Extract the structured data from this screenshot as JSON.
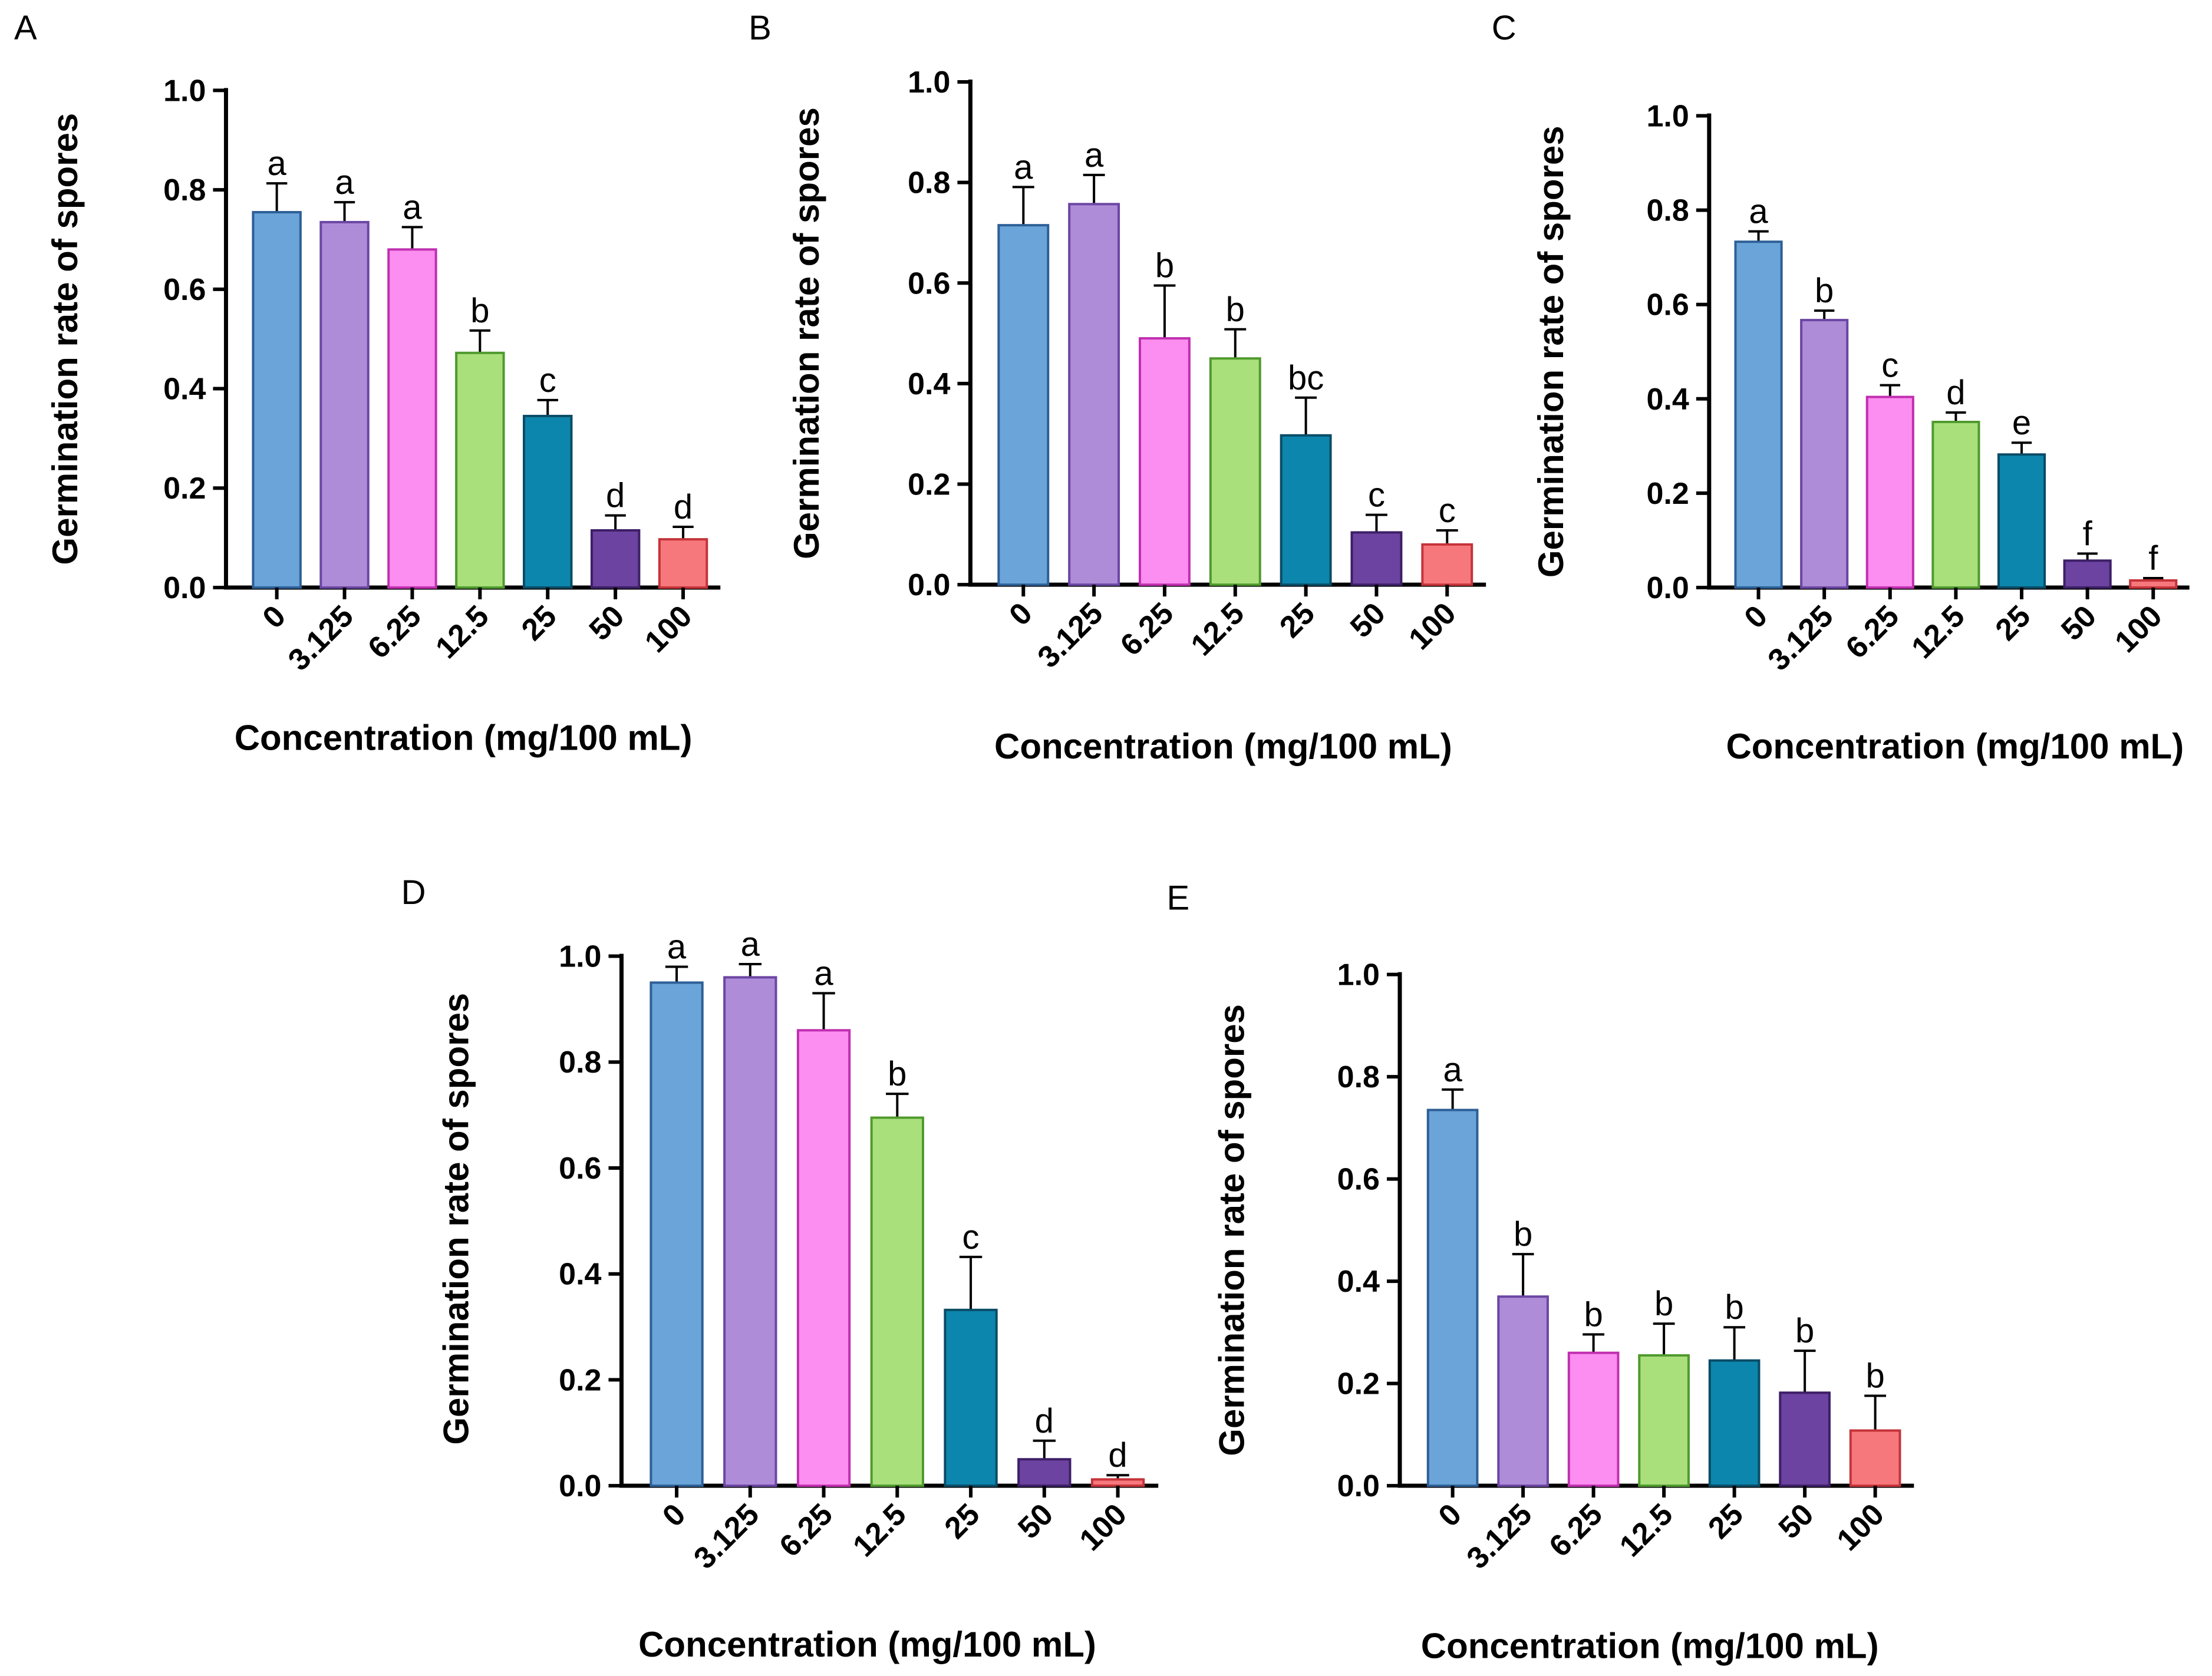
{
  "chart_data": [
    {
      "panel": "A",
      "type": "bar",
      "xlabel": "Concentration (mg/100 mL)",
      "ylabel": "Germination rate of spores",
      "ylim": [
        0,
        1.0
      ],
      "yticks": [
        "0.0",
        "0.2",
        "0.4",
        "0.6",
        "0.8",
        "1.0"
      ],
      "categories": [
        "0",
        "3.125",
        "6.25",
        "12.5",
        "25",
        "50",
        "100"
      ],
      "values": [
        0.755,
        0.735,
        0.68,
        0.472,
        0.345,
        0.115,
        0.097
      ],
      "errors": [
        0.058,
        0.04,
        0.045,
        0.045,
        0.032,
        0.03,
        0.025
      ],
      "significance": [
        "a",
        "a",
        "a",
        "b",
        "c",
        "d",
        "d"
      ]
    },
    {
      "panel": "B",
      "type": "bar",
      "xlabel": "Concentration (mg/100 mL)",
      "ylabel": "Germination rate of spores",
      "ylim": [
        0,
        1.0
      ],
      "yticks": [
        "0.0",
        "0.2",
        "0.4",
        "0.6",
        "0.8",
        "1.0"
      ],
      "categories": [
        "0",
        "3.125",
        "6.25",
        "12.5",
        "25",
        "50",
        "100"
      ],
      "values": [
        0.715,
        0.757,
        0.49,
        0.45,
        0.297,
        0.104,
        0.08
      ],
      "errors": [
        0.076,
        0.058,
        0.105,
        0.058,
        0.075,
        0.035,
        0.028
      ],
      "significance": [
        "a",
        "a",
        "b",
        "b",
        "bc",
        "c",
        "c"
      ]
    },
    {
      "panel": "C",
      "type": "bar",
      "xlabel": "Concentration (mg/100 mL)",
      "ylabel": "Germination rate of spores",
      "ylim": [
        0,
        1.0
      ],
      "yticks": [
        "0.0",
        "0.2",
        "0.4",
        "0.6",
        "0.8",
        "1.0"
      ],
      "categories": [
        "0",
        "3.125",
        "6.25",
        "12.5",
        "25",
        "50",
        "100"
      ],
      "values": [
        0.733,
        0.567,
        0.404,
        0.351,
        0.282,
        0.057,
        0.015
      ],
      "errors": [
        0.022,
        0.02,
        0.025,
        0.02,
        0.025,
        0.015,
        0.005
      ],
      "significance": [
        "a",
        "b",
        "c",
        "d",
        "e",
        "f",
        "f"
      ]
    },
    {
      "panel": "D",
      "type": "bar",
      "xlabel": "Concentration (mg/100 mL)",
      "ylabel": "Germination rate of spores",
      "ylim": [
        0,
        1.0
      ],
      "yticks": [
        "0.0",
        "0.2",
        "0.4",
        "0.6",
        "0.8",
        "1.0"
      ],
      "categories": [
        "0",
        "3.125",
        "6.25",
        "12.5",
        "25",
        "50",
        "100"
      ],
      "values": [
        0.95,
        0.96,
        0.86,
        0.695,
        0.332,
        0.05,
        0.012
      ],
      "errors": [
        0.03,
        0.025,
        0.07,
        0.045,
        0.1,
        0.035,
        0.008
      ],
      "significance": [
        "a",
        "a",
        "a",
        "b",
        "c",
        "d",
        "d"
      ]
    },
    {
      "panel": "E",
      "type": "bar",
      "xlabel": "Concentration (mg/100 mL)",
      "ylabel": "Germination rate of spores",
      "ylim": [
        0,
        1.0
      ],
      "yticks": [
        "0.0",
        "0.2",
        "0.4",
        "0.6",
        "0.8",
        "1.0"
      ],
      "categories": [
        "0",
        "3.125",
        "6.25",
        "12.5",
        "25",
        "50",
        "100"
      ],
      "values": [
        0.735,
        0.37,
        0.26,
        0.255,
        0.245,
        0.182,
        0.108
      ],
      "errors": [
        0.04,
        0.083,
        0.036,
        0.062,
        0.065,
        0.082,
        0.068
      ],
      "significance": [
        "a",
        "b",
        "b",
        "b",
        "b",
        "b",
        "b"
      ]
    }
  ],
  "bar_colors": [
    {
      "fill": "#6aa4d9",
      "stroke": "#2d5f96"
    },
    {
      "fill": "#ae8cd8",
      "stroke": "#6b46a3"
    },
    {
      "fill": "#fb8ef0",
      "stroke": "#c02fb0"
    },
    {
      "fill": "#a9e07c",
      "stroke": "#4f9a2e"
    },
    {
      "fill": "#0d86ad",
      "stroke": "#0a4c66"
    },
    {
      "fill": "#6c43a0",
      "stroke": "#3d1f66"
    },
    {
      "fill": "#f6787d",
      "stroke": "#c53339"
    }
  ]
}
